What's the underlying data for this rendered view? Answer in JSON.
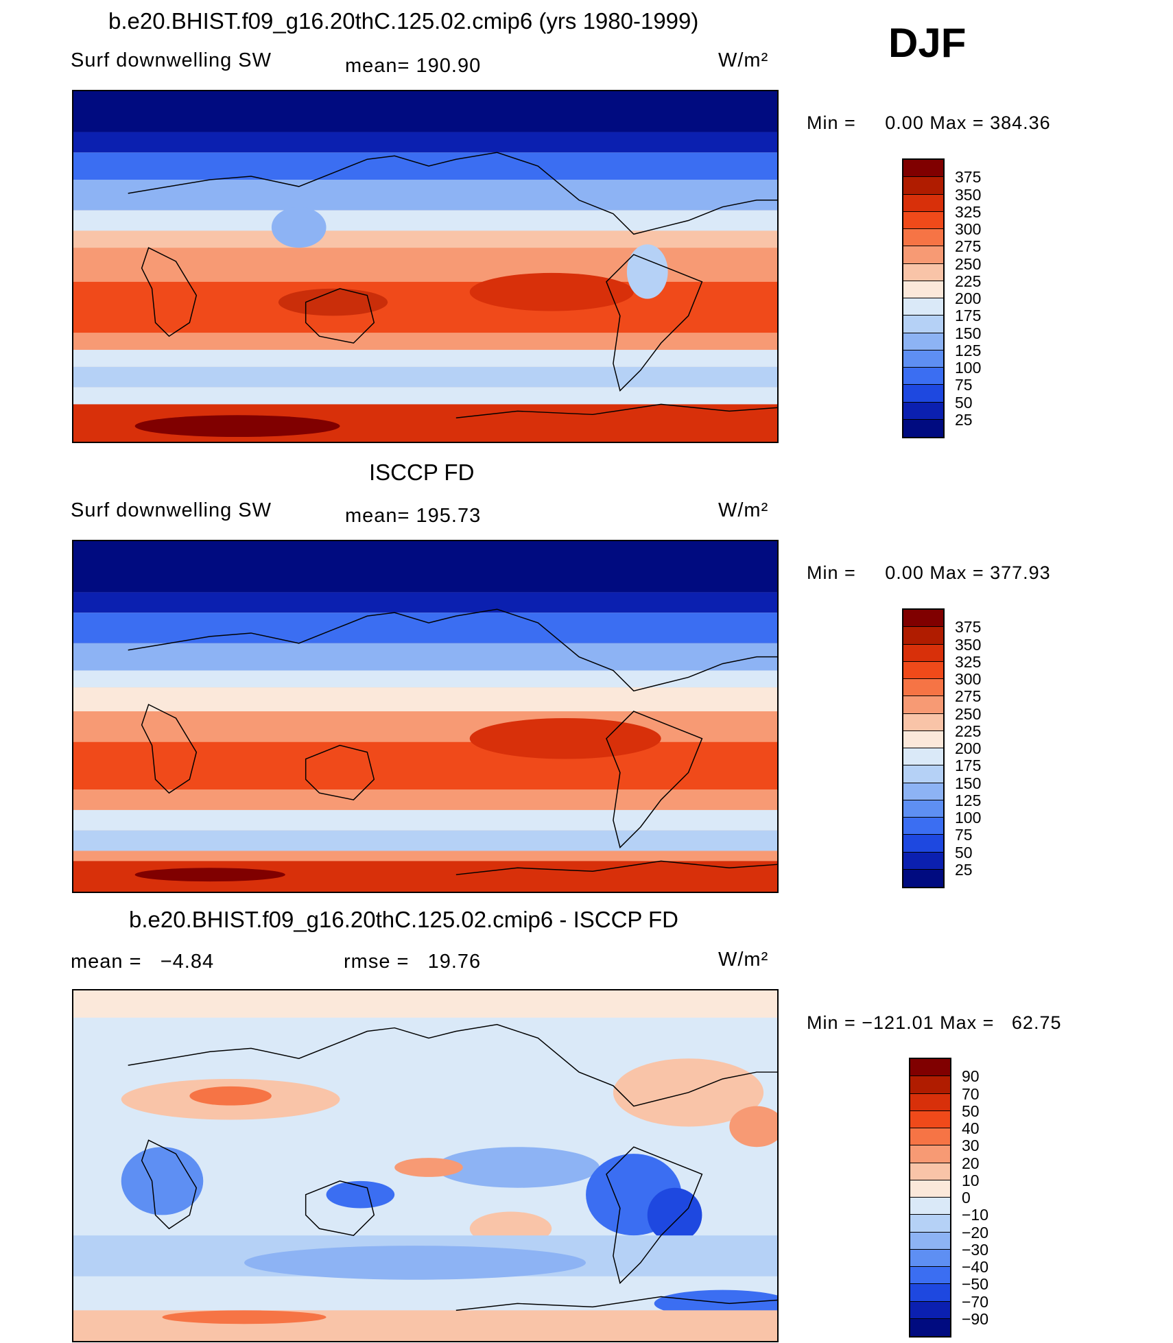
{
  "season": "DJF",
  "panels": [
    {
      "title": "b.e20.BHIST.f09_g16.20thC.125.02.cmip6 (yrs 1980-1999)",
      "left_label": "Surf downwelling SW",
      "center_label": "mean= 190.90",
      "units": "W/m²",
      "minmax": "Min =     0.00 Max = 384.36",
      "colorbar": {
        "labels": [
          "375",
          "350",
          "325",
          "300",
          "275",
          "250",
          "225",
          "200",
          "175",
          "150",
          "125",
          "100",
          "75",
          "50",
          "25"
        ],
        "colors": [
          "#800000",
          "#b01c00",
          "#d8300a",
          "#f04a1a",
          "#f67445",
          "#f79a74",
          "#f9c4a8",
          "#fbe8da",
          "#dae9f8",
          "#b5d1f6",
          "#8db3f4",
          "#5e8ff3",
          "#3b6ef2",
          "#1e48e0",
          "#0b20b0",
          "#000b80"
        ]
      }
    },
    {
      "title": "ISCCP FD",
      "left_label": "Surf downwelling SW",
      "center_label": "mean= 195.73",
      "units": "W/m²",
      "minmax": "Min =     0.00 Max = 377.93",
      "colorbar": {
        "labels": [
          "375",
          "350",
          "325",
          "300",
          "275",
          "250",
          "225",
          "200",
          "175",
          "150",
          "125",
          "100",
          "75",
          "50",
          "25"
        ],
        "colors": [
          "#800000",
          "#b01c00",
          "#d8300a",
          "#f04a1a",
          "#f67445",
          "#f79a74",
          "#f9c4a8",
          "#fbe8da",
          "#dae9f8",
          "#b5d1f6",
          "#8db3f4",
          "#5e8ff3",
          "#3b6ef2",
          "#1e48e0",
          "#0b20b0",
          "#000b80"
        ]
      }
    },
    {
      "title": "b.e20.BHIST.f09_g16.20thC.125.02.cmip6 - ISCCP FD",
      "left_label": "mean =   −4.84",
      "center_label": "rmse =   19.76",
      "units": "W/m²",
      "minmax": "Min = −121.01 Max =   62.75",
      "colorbar": {
        "labels": [
          "90",
          "70",
          "50",
          "40",
          "30",
          "20",
          "10",
          "0",
          "−10",
          "−20",
          "−30",
          "−40",
          "−50",
          "−70",
          "−90"
        ],
        "colors": [
          "#800000",
          "#b01c00",
          "#d8300a",
          "#f04a1a",
          "#f67445",
          "#f79a74",
          "#f9c4a8",
          "#fbe8da",
          "#dae9f8",
          "#b5d1f6",
          "#8db3f4",
          "#5e8ff3",
          "#3b6ef2",
          "#1e48e0",
          "#0b20b0",
          "#000b80"
        ]
      }
    }
  ]
}
